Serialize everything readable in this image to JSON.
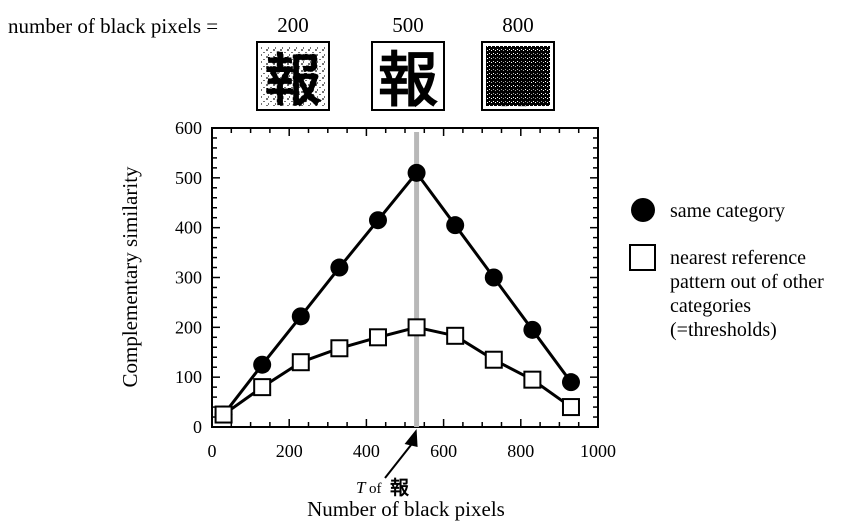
{
  "header": {
    "label": "number of black pixels =",
    "samples": [
      {
        "value": "200",
        "glyph": "報",
        "texture": "sparse"
      },
      {
        "value": "500",
        "glyph": "報",
        "texture": "clean"
      },
      {
        "value": "800",
        "glyph": "報",
        "texture": "dense"
      }
    ]
  },
  "chart_data": {
    "type": "line",
    "xlabel": "Number of black pixels",
    "ylabel": "Complementary similarity",
    "xlim": [
      0,
      1000
    ],
    "ylim": [
      0,
      600
    ],
    "xticks": [
      0,
      200,
      400,
      600,
      800,
      1000
    ],
    "yticks": [
      0,
      100,
      200,
      300,
      400,
      500,
      600
    ],
    "series": [
      {
        "name": "same category",
        "marker": "filled-circle",
        "color": "#000000",
        "x": [
          30,
          130,
          230,
          330,
          430,
          530,
          630,
          730,
          830,
          930
        ],
        "y": [
          25,
          125,
          222,
          320,
          415,
          510,
          405,
          300,
          195,
          90
        ]
      },
      {
        "name": "nearest reference pattern out of other categories (=thresholds)",
        "marker": "open-square",
        "color": "#000000",
        "x": [
          30,
          130,
          230,
          330,
          430,
          530,
          630,
          730,
          830,
          930
        ],
        "y": [
          25,
          80,
          130,
          158,
          180,
          200,
          183,
          135,
          95,
          40
        ]
      }
    ],
    "annotation": {
      "x": 530,
      "prefix": "T",
      "text": "of",
      "glyph": "報",
      "line_color": "#b8b8b8"
    },
    "legend": {
      "placement": "right",
      "items": [
        {
          "series": 0,
          "lines": [
            "same category"
          ]
        },
        {
          "series": 1,
          "lines": [
            "nearest reference",
            "pattern out of other",
            "categories",
            "(=thresholds)"
          ]
        }
      ]
    }
  }
}
